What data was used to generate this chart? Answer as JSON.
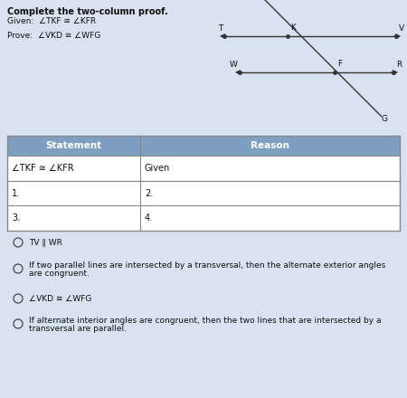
{
  "title_line1": "Complete the two-column proof.",
  "given": "Given:  ∠TKF ≅ ∠KFR",
  "prove": "Prove:  ∠VKD ≅ ∠WFG",
  "table_header": [
    "Statement",
    "Reason"
  ],
  "table_rows": [
    [
      "∠TKF ≅ ∠KFR",
      "Given"
    ],
    [
      "1.",
      "2."
    ],
    [
      "3.",
      "4."
    ]
  ],
  "options": [
    "TV ∥ WR",
    "If two parallel lines are intersected by a transversal, then the alternate exterior angles\nare congruent.",
    "∠VKD ≅ ∠WFG",
    "If alternate interior angles are congruent, then the two lines that are intersected by a\ntransversal are parallel."
  ],
  "bg_color": "#d9e2f0",
  "header_bg": "#7f9fc0",
  "row_bg": "#ffffff",
  "table_line_color": "#888888",
  "text_color": "#111111"
}
